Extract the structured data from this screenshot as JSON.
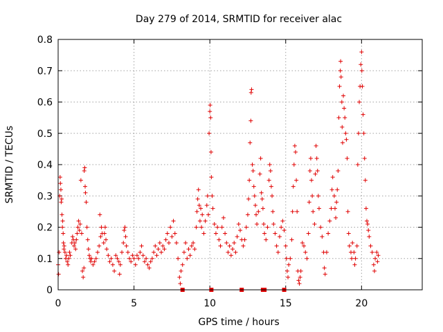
{
  "chart_data": {
    "type": "scatter",
    "title": "Day 279 of 2014, SRMTID for receiver alac",
    "xlabel": "GPS time / hours",
    "ylabel": "SRMTID / TECUs",
    "xlim": [
      0,
      24
    ],
    "ylim": [
      0,
      0.8
    ],
    "xticks": [
      0,
      5,
      10,
      15,
      20
    ],
    "yticks": [
      0,
      0.1,
      0.2,
      0.3,
      0.4,
      0.5,
      0.6,
      0.7,
      0.8
    ],
    "x_tick_labels": [
      "0",
      "5",
      "10",
      "15",
      "20"
    ],
    "y_tick_labels": [
      "0",
      "0.1",
      "0.2",
      "0.3",
      "0.4",
      "0.5",
      "0.6",
      "0.7",
      "0.8"
    ],
    "grid": true,
    "marker": "+",
    "color": "#e00000",
    "zero_markers_x": [
      8.2,
      10.1,
      12.1,
      13.5,
      13.6,
      14.9
    ],
    "series": [
      {
        "name": "SRMTID",
        "points": [
          [
            0.0,
            0.08
          ],
          [
            0.03,
            0.05
          ],
          [
            0.06,
            0.12
          ],
          [
            0.1,
            0.3
          ],
          [
            0.13,
            0.36
          ],
          [
            0.15,
            0.34
          ],
          [
            0.18,
            0.32
          ],
          [
            0.2,
            0.28
          ],
          [
            0.23,
            0.29
          ],
          [
            0.25,
            0.24
          ],
          [
            0.28,
            0.2
          ],
          [
            0.3,
            0.22
          ],
          [
            0.33,
            0.18
          ],
          [
            0.35,
            0.15
          ],
          [
            0.38,
            0.13
          ],
          [
            0.4,
            0.14
          ],
          [
            0.45,
            0.12
          ],
          [
            0.5,
            0.1
          ],
          [
            0.55,
            0.11
          ],
          [
            0.6,
            0.09
          ],
          [
            0.65,
            0.08
          ],
          [
            0.7,
            0.1
          ],
          [
            0.75,
            0.12
          ],
          [
            0.8,
            0.11
          ],
          [
            0.9,
            0.15
          ],
          [
            0.95,
            0.17
          ],
          [
            1.0,
            0.16
          ],
          [
            1.05,
            0.14
          ],
          [
            1.1,
            0.15
          ],
          [
            1.15,
            0.13
          ],
          [
            1.2,
            0.16
          ],
          [
            1.25,
            0.18
          ],
          [
            1.3,
            0.2
          ],
          [
            1.35,
            0.22
          ],
          [
            1.4,
            0.19
          ],
          [
            1.45,
            0.21
          ],
          [
            1.5,
            0.35
          ],
          [
            1.55,
            0.18
          ],
          [
            1.6,
            0.06
          ],
          [
            1.65,
            0.04
          ],
          [
            1.7,
            0.07
          ],
          [
            1.72,
            0.38
          ],
          [
            1.75,
            0.39
          ],
          [
            1.78,
            0.33
          ],
          [
            1.8,
            0.31
          ],
          [
            1.85,
            0.28
          ],
          [
            1.9,
            0.2
          ],
          [
            1.95,
            0.16
          ],
          [
            2.0,
            0.13
          ],
          [
            2.05,
            0.11
          ],
          [
            2.1,
            0.1
          ],
          [
            2.15,
            0.09
          ],
          [
            2.2,
            0.1
          ],
          [
            2.3,
            0.08
          ],
          [
            2.4,
            0.09
          ],
          [
            2.5,
            0.1
          ],
          [
            2.6,
            0.12
          ],
          [
            2.7,
            0.14
          ],
          [
            2.75,
            0.24
          ],
          [
            2.8,
            0.17
          ],
          [
            2.85,
            0.2
          ],
          [
            2.9,
            0.18
          ],
          [
            3.0,
            0.15
          ],
          [
            3.05,
            0.18
          ],
          [
            3.1,
            0.2
          ],
          [
            3.15,
            0.16
          ],
          [
            3.2,
            0.13
          ],
          [
            3.3,
            0.11
          ],
          [
            3.4,
            0.09
          ],
          [
            3.5,
            0.1
          ],
          [
            3.6,
            0.08
          ],
          [
            3.7,
            0.06
          ],
          [
            3.8,
            0.11
          ],
          [
            3.9,
            0.1
          ],
          [
            4.0,
            0.09
          ],
          [
            4.05,
            0.05
          ],
          [
            4.1,
            0.08
          ],
          [
            4.2,
            0.12
          ],
          [
            4.3,
            0.15
          ],
          [
            4.35,
            0.19
          ],
          [
            4.4,
            0.2
          ],
          [
            4.45,
            0.17
          ],
          [
            4.5,
            0.14
          ],
          [
            4.6,
            0.12
          ],
          [
            4.7,
            0.1
          ],
          [
            4.8,
            0.09
          ],
          [
            4.9,
            0.11
          ],
          [
            5.0,
            0.1
          ],
          [
            5.1,
            0.08
          ],
          [
            5.2,
            0.11
          ],
          [
            5.3,
            0.1
          ],
          [
            5.4,
            0.12
          ],
          [
            5.5,
            0.14
          ],
          [
            5.6,
            0.11
          ],
          [
            5.7,
            0.09
          ],
          [
            5.8,
            0.1
          ],
          [
            5.9,
            0.08
          ],
          [
            6.0,
            0.07
          ],
          [
            6.1,
            0.09
          ],
          [
            6.2,
            0.1
          ],
          [
            6.3,
            0.12
          ],
          [
            6.4,
            0.14
          ],
          [
            6.5,
            0.11
          ],
          [
            6.6,
            0.13
          ],
          [
            6.7,
            0.15
          ],
          [
            6.8,
            0.12
          ],
          [
            6.9,
            0.14
          ],
          [
            7.0,
            0.13
          ],
          [
            7.1,
            0.16
          ],
          [
            7.2,
            0.18
          ],
          [
            7.3,
            0.15
          ],
          [
            7.4,
            0.2
          ],
          [
            7.5,
            0.17
          ],
          [
            7.6,
            0.22
          ],
          [
            7.7,
            0.18
          ],
          [
            7.8,
            0.15
          ],
          [
            7.9,
            0.1
          ],
          [
            8.0,
            0.04
          ],
          [
            8.05,
            0.02
          ],
          [
            8.1,
            0.06
          ],
          [
            8.2,
            0.08
          ],
          [
            8.3,
            0.12
          ],
          [
            8.4,
            0.15
          ],
          [
            8.5,
            0.1
          ],
          [
            8.6,
            0.13
          ],
          [
            8.7,
            0.11
          ],
          [
            8.8,
            0.14
          ],
          [
            8.9,
            0.15
          ],
          [
            9.0,
            0.13
          ],
          [
            9.1,
            0.2
          ],
          [
            9.15,
            0.25
          ],
          [
            9.2,
            0.29
          ],
          [
            9.25,
            0.32
          ],
          [
            9.3,
            0.27
          ],
          [
            9.35,
            0.22
          ],
          [
            9.4,
            0.26
          ],
          [
            9.45,
            0.2
          ],
          [
            9.5,
            0.24
          ],
          [
            9.6,
            0.18
          ],
          [
            9.7,
            0.22
          ],
          [
            9.8,
            0.27
          ],
          [
            9.85,
            0.3
          ],
          [
            9.9,
            0.24
          ],
          [
            9.95,
            0.5
          ],
          [
            10.0,
            0.57
          ],
          [
            10.02,
            0.59
          ],
          [
            10.05,
            0.55
          ],
          [
            10.08,
            0.44
          ],
          [
            10.1,
            0.36
          ],
          [
            10.15,
            0.3
          ],
          [
            10.2,
            0.26
          ],
          [
            10.3,
            0.21
          ],
          [
            10.4,
            0.18
          ],
          [
            10.5,
            0.2
          ],
          [
            10.6,
            0.16
          ],
          [
            10.7,
            0.14
          ],
          [
            10.8,
            0.2
          ],
          [
            10.9,
            0.23
          ],
          [
            11.0,
            0.18
          ],
          [
            11.1,
            0.15
          ],
          [
            11.2,
            0.12
          ],
          [
            11.3,
            0.14
          ],
          [
            11.4,
            0.11
          ],
          [
            11.5,
            0.13
          ],
          [
            11.6,
            0.15
          ],
          [
            11.7,
            0.12
          ],
          [
            11.8,
            0.17
          ],
          [
            11.9,
            0.21
          ],
          [
            12.0,
            0.19
          ],
          [
            12.1,
            0.16
          ],
          [
            12.2,
            0.14
          ],
          [
            12.3,
            0.16
          ],
          [
            12.4,
            0.2
          ],
          [
            12.5,
            0.24
          ],
          [
            12.55,
            0.29
          ],
          [
            12.6,
            0.35
          ],
          [
            12.65,
            0.47
          ],
          [
            12.7,
            0.54
          ],
          [
            12.72,
            0.63
          ],
          [
            12.75,
            0.64
          ],
          [
            12.8,
            0.4
          ],
          [
            12.85,
            0.38
          ],
          [
            12.9,
            0.33
          ],
          [
            12.95,
            0.3
          ],
          [
            13.0,
            0.27
          ],
          [
            13.05,
            0.24
          ],
          [
            13.1,
            0.21
          ],
          [
            13.2,
            0.25
          ],
          [
            13.3,
            0.37
          ],
          [
            13.35,
            0.42
          ],
          [
            13.4,
            0.31
          ],
          [
            13.45,
            0.29
          ],
          [
            13.5,
            0.26
          ],
          [
            13.55,
            0.21
          ],
          [
            13.6,
            0.18
          ],
          [
            13.7,
            0.16
          ],
          [
            13.8,
            0.2
          ],
          [
            13.9,
            0.35
          ],
          [
            13.95,
            0.4
          ],
          [
            14.0,
            0.38
          ],
          [
            14.05,
            0.33
          ],
          [
            14.1,
            0.3
          ],
          [
            14.15,
            0.25
          ],
          [
            14.2,
            0.21
          ],
          [
            14.3,
            0.18
          ],
          [
            14.4,
            0.14
          ],
          [
            14.5,
            0.12
          ],
          [
            14.6,
            0.17
          ],
          [
            14.7,
            0.2
          ],
          [
            14.8,
            0.22
          ],
          [
            14.9,
            0.19
          ],
          [
            15.0,
            0.14
          ],
          [
            15.05,
            0.1
          ],
          [
            15.1,
            0.06
          ],
          [
            15.15,
            0.04
          ],
          [
            15.2,
            0.08
          ],
          [
            15.3,
            0.1
          ],
          [
            15.4,
            0.16
          ],
          [
            15.45,
            0.25
          ],
          [
            15.5,
            0.33
          ],
          [
            15.55,
            0.4
          ],
          [
            15.6,
            0.46
          ],
          [
            15.65,
            0.44
          ],
          [
            15.7,
            0.35
          ],
          [
            15.75,
            0.25
          ],
          [
            15.8,
            0.06
          ],
          [
            15.85,
            0.03
          ],
          [
            15.9,
            0.02
          ],
          [
            15.95,
            0.04
          ],
          [
            16.0,
            0.06
          ],
          [
            16.1,
            0.15
          ],
          [
            16.2,
            0.14
          ],
          [
            16.3,
            0.12
          ],
          [
            16.4,
            0.1
          ],
          [
            16.5,
            0.18
          ],
          [
            16.55,
            0.28
          ],
          [
            16.6,
            0.38
          ],
          [
            16.65,
            0.42
          ],
          [
            16.7,
            0.35
          ],
          [
            16.75,
            0.3
          ],
          [
            16.8,
            0.25
          ],
          [
            16.9,
            0.21
          ],
          [
            16.95,
            0.37
          ],
          [
            17.0,
            0.46
          ],
          [
            17.05,
            0.42
          ],
          [
            17.1,
            0.38
          ],
          [
            17.15,
            0.3
          ],
          [
            17.2,
            0.26
          ],
          [
            17.3,
            0.2
          ],
          [
            17.4,
            0.17
          ],
          [
            17.5,
            0.12
          ],
          [
            17.55,
            0.07
          ],
          [
            17.6,
            0.05
          ],
          [
            17.7,
            0.12
          ],
          [
            17.8,
            0.18
          ],
          [
            17.9,
            0.22
          ],
          [
            18.0,
            0.26
          ],
          [
            18.05,
            0.32
          ],
          [
            18.1,
            0.36
          ],
          [
            18.2,
            0.3
          ],
          [
            18.25,
            0.26
          ],
          [
            18.3,
            0.23
          ],
          [
            18.35,
            0.28
          ],
          [
            18.4,
            0.32
          ],
          [
            18.45,
            0.38
          ],
          [
            18.5,
            0.55
          ],
          [
            18.55,
            0.65
          ],
          [
            18.6,
            0.7
          ],
          [
            18.62,
            0.73
          ],
          [
            18.65,
            0.68
          ],
          [
            18.7,
            0.6
          ],
          [
            18.72,
            0.52
          ],
          [
            18.75,
            0.47
          ],
          [
            18.8,
            0.62
          ],
          [
            18.85,
            0.58
          ],
          [
            18.9,
            0.55
          ],
          [
            18.95,
            0.5
          ],
          [
            19.0,
            0.48
          ],
          [
            19.05,
            0.42
          ],
          [
            19.1,
            0.25
          ],
          [
            19.15,
            0.18
          ],
          [
            19.2,
            0.14
          ],
          [
            19.3,
            0.12
          ],
          [
            19.35,
            0.1
          ],
          [
            19.4,
            0.15
          ],
          [
            19.5,
            0.12
          ],
          [
            19.55,
            0.08
          ],
          [
            19.6,
            0.1
          ],
          [
            19.7,
            0.14
          ],
          [
            19.75,
            0.4
          ],
          [
            19.8,
            0.5
          ],
          [
            19.85,
            0.6
          ],
          [
            19.9,
            0.65
          ],
          [
            19.95,
            0.72
          ],
          [
            20.0,
            0.76
          ],
          [
            20.02,
            0.7
          ],
          [
            20.05,
            0.65
          ],
          [
            20.1,
            0.56
          ],
          [
            20.15,
            0.5
          ],
          [
            20.2,
            0.42
          ],
          [
            20.25,
            0.35
          ],
          [
            20.3,
            0.26
          ],
          [
            20.35,
            0.22
          ],
          [
            20.4,
            0.21
          ],
          [
            20.45,
            0.19
          ],
          [
            20.5,
            0.17
          ],
          [
            20.6,
            0.14
          ],
          [
            20.7,
            0.12
          ],
          [
            20.8,
            0.08
          ],
          [
            20.85,
            0.06
          ],
          [
            20.9,
            0.1
          ],
          [
            21.0,
            0.12
          ],
          [
            21.05,
            0.09
          ],
          [
            21.1,
            0.11
          ]
        ]
      }
    ]
  }
}
